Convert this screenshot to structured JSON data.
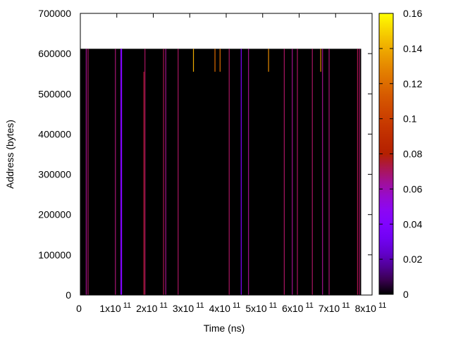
{
  "chart_data": {
    "type": "heatmap",
    "title": "",
    "xlabel": "Time (ns)",
    "ylabel": "Address (bytes)",
    "xlim": [
      0,
      800000000000
    ],
    "ylim": [
      0,
      700000
    ],
    "x_ticks": [
      {
        "value": 0,
        "mantissa": "0",
        "exp": ""
      },
      {
        "value": 100000000000,
        "mantissa": "1x10",
        "exp": "11"
      },
      {
        "value": 200000000000,
        "mantissa": "2x10",
        "exp": "11"
      },
      {
        "value": 300000000000,
        "mantissa": "3x10",
        "exp": "11"
      },
      {
        "value": 400000000000,
        "mantissa": "4x10",
        "exp": "11"
      },
      {
        "value": 500000000000,
        "mantissa": "5x10",
        "exp": "11"
      },
      {
        "value": 600000000000,
        "mantissa": "6x10",
        "exp": "11"
      },
      {
        "value": 700000000000,
        "mantissa": "7x10",
        "exp": "11"
      },
      {
        "value": 800000000000,
        "mantissa": "8x10",
        "exp": "11"
      }
    ],
    "y_ticks": [
      {
        "value": 0,
        "label": "0"
      },
      {
        "value": 100000,
        "label": "100000"
      },
      {
        "value": 200000,
        "label": "200000"
      },
      {
        "value": 300000,
        "label": "300000"
      },
      {
        "value": 400000,
        "label": "400000"
      },
      {
        "value": 500000,
        "label": "500000"
      },
      {
        "value": 600000,
        "label": "600000"
      },
      {
        "value": 700000,
        "label": "700000"
      }
    ],
    "grid": false,
    "background_value": 0,
    "data_extent": {
      "x": [
        0,
        770000000000
      ],
      "y": [
        0,
        612000
      ]
    },
    "colorbar": {
      "range": [
        0,
        0.16
      ],
      "ticks": [
        {
          "value": 0,
          "label": "0"
        },
        {
          "value": 0.02,
          "label": "0.02"
        },
        {
          "value": 0.04,
          "label": "0.04"
        },
        {
          "value": 0.06,
          "label": "0.06"
        },
        {
          "value": 0.08,
          "label": "0.08"
        },
        {
          "value": 0.1,
          "label": "0.1"
        },
        {
          "value": 0.12,
          "label": "0.12"
        },
        {
          "value": 0.14,
          "label": "0.14"
        },
        {
          "value": 0.16,
          "label": "0.16"
        }
      ],
      "palette": "black-blue-purple-red-orange-yellow"
    },
    "stripes": [
      {
        "x": 16000000000,
        "y0": 0,
        "y1": 612000,
        "value": 0.065
      },
      {
        "x": 21000000000,
        "y0": 0,
        "y1": 612000,
        "value": 0.07
      },
      {
        "x": 96000000000,
        "y0": 0,
        "y1": 612000,
        "value": 0.068
      },
      {
        "x": 111000000000,
        "y0": 0,
        "y1": 612000,
        "value": 0.04
      },
      {
        "x": 113000000000,
        "y0": 0,
        "y1": 612000,
        "value": 0.04
      },
      {
        "x": 174000000000,
        "y0": 0,
        "y1": 555000,
        "value": 0.075
      },
      {
        "x": 177000000000,
        "y0": 0,
        "y1": 612000,
        "value": 0.07
      },
      {
        "x": 228000000000,
        "y0": 0,
        "y1": 612000,
        "value": 0.072
      },
      {
        "x": 234000000000,
        "y0": 0,
        "y1": 612000,
        "value": 0.065
      },
      {
        "x": 268000000000,
        "y0": 0,
        "y1": 612000,
        "value": 0.07
      },
      {
        "x": 310000000000,
        "y0": 555000,
        "y1": 612000,
        "value": 0.14
      },
      {
        "x": 369000000000,
        "y0": 555000,
        "y1": 612000,
        "value": 0.12
      },
      {
        "x": 383000000000,
        "y0": 555000,
        "y1": 612000,
        "value": 0.12
      },
      {
        "x": 408000000000,
        "y0": 0,
        "y1": 612000,
        "value": 0.07
      },
      {
        "x": 441000000000,
        "y0": 0,
        "y1": 612000,
        "value": 0.04
      },
      {
        "x": 461000000000,
        "y0": 0,
        "y1": 612000,
        "value": 0.065
      },
      {
        "x": 516000000000,
        "y0": 555000,
        "y1": 612000,
        "value": 0.13
      },
      {
        "x": 559000000000,
        "y0": 0,
        "y1": 612000,
        "value": 0.07
      },
      {
        "x": 581000000000,
        "y0": 0,
        "y1": 612000,
        "value": 0.065
      },
      {
        "x": 595000000000,
        "y0": 0,
        "y1": 612000,
        "value": 0.07
      },
      {
        "x": 636000000000,
        "y0": 0,
        "y1": 612000,
        "value": 0.07
      },
      {
        "x": 659000000000,
        "y0": 555000,
        "y1": 612000,
        "value": 0.13
      },
      {
        "x": 664000000000,
        "y0": 0,
        "y1": 612000,
        "value": 0.065
      },
      {
        "x": 682000000000,
        "y0": 0,
        "y1": 612000,
        "value": 0.068
      },
      {
        "x": 760000000000,
        "y0": 0,
        "y1": 612000,
        "value": 0.072
      },
      {
        "x": 765000000000,
        "y0": 0,
        "y1": 612000,
        "value": 0.07
      }
    ]
  }
}
